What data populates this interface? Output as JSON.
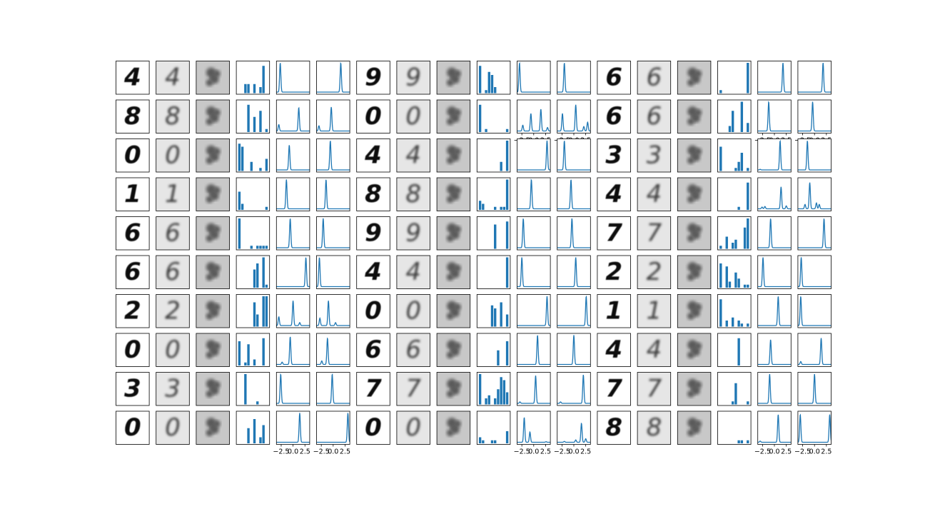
{
  "chart_data": {
    "type": "image-grid",
    "rows": 10,
    "groups": 3,
    "panels_per_group": [
      "input-digit",
      "reconstruction",
      "mean-image",
      "bar-histogram",
      "line-density",
      "line-density"
    ],
    "line_xticks": [
      "−2.5",
      "0.0",
      "2.5"
    ],
    "line_xlim": [
      -3.5,
      3.5
    ],
    "bar_color": "#1f77b4",
    "line_color": "#1f77b4",
    "digits": [
      [
        "4",
        "9",
        "6"
      ],
      [
        "8",
        "0",
        "6"
      ],
      [
        "0",
        "4",
        "3"
      ],
      [
        "1",
        "8",
        "4"
      ],
      [
        "6",
        "9",
        "7"
      ],
      [
        "6",
        "4",
        "2"
      ],
      [
        "2",
        "0",
        "1"
      ],
      [
        "0",
        "6",
        "4"
      ],
      [
        "3",
        "7",
        "7"
      ],
      [
        "0",
        "0",
        "8"
      ]
    ],
    "bars": [
      [
        [
          0,
          0,
          3,
          3,
          0,
          3,
          0,
          2,
          9,
          0
        ],
        [
          9,
          0,
          1,
          7,
          6,
          2,
          0,
          0,
          0,
          0
        ],
        [
          1,
          0,
          0,
          0,
          0,
          0,
          0,
          0,
          0,
          10
        ]
      ],
      [
        [
          0,
          0,
          0,
          9,
          0,
          5,
          0,
          7,
          0,
          1
        ],
        [
          9,
          0,
          1,
          0,
          0,
          0,
          0,
          0,
          0,
          1
        ],
        [
          0,
          0,
          0,
          2,
          7,
          0,
          0,
          10,
          0,
          3
        ]
      ],
      [
        [
          9,
          8,
          0,
          0,
          3,
          0,
          0,
          1,
          0,
          4
        ],
        [
          0,
          0,
          0,
          0,
          0,
          0,
          0,
          3,
          0,
          10
        ],
        [
          8,
          0,
          0,
          0,
          0,
          1,
          3,
          6,
          0,
          1
        ]
      ],
      [
        [
          6,
          2,
          0,
          0,
          0,
          0,
          0,
          0,
          0,
          1
        ],
        [
          3,
          2,
          0,
          0,
          0,
          1,
          0,
          1,
          1,
          10
        ],
        [
          0,
          0,
          0,
          0,
          0,
          0,
          1,
          0,
          0,
          9
        ]
      ],
      [
        [
          10,
          0,
          0,
          0,
          1,
          0,
          1,
          1,
          1,
          1
        ],
        [
          0,
          0,
          0,
          0,
          0,
          8,
          0,
          0,
          0,
          9
        ],
        [
          1,
          0,
          4,
          0,
          2,
          3,
          0,
          0,
          7,
          10
        ]
      ],
      [
        [
          0,
          0,
          0,
          0,
          0,
          6,
          8,
          0,
          10,
          1
        ],
        [
          0,
          0,
          0,
          0,
          0,
          0,
          0,
          0,
          0,
          10
        ],
        [
          8,
          0,
          7,
          2,
          0,
          5,
          3,
          0,
          1,
          1
        ]
      ],
      [
        [
          0,
          0,
          0,
          0,
          0,
          8,
          4,
          0,
          10,
          10
        ],
        [
          0,
          0,
          0,
          0,
          7,
          6,
          0,
          8,
          0,
          4
        ],
        [
          9,
          0,
          2,
          0,
          3,
          0,
          2,
          1,
          0,
          1
        ]
      ],
      [
        [
          8,
          0,
          1,
          7,
          0,
          2,
          0,
          0,
          9,
          0
        ],
        [
          0,
          0,
          0,
          0,
          0,
          0,
          5,
          0,
          0,
          8
        ],
        [
          0,
          0,
          0,
          0,
          0,
          0,
          9,
          0,
          0,
          0
        ]
      ],
      [
        [
          0,
          0,
          10,
          0,
          0,
          0,
          1,
          0,
          0,
          0
        ],
        [
          10,
          0,
          2,
          3,
          0,
          2,
          5,
          9,
          8,
          4
        ],
        [
          0,
          0,
          0,
          0,
          1,
          7,
          0,
          0,
          0,
          1
        ]
      ],
      [
        [
          0,
          0,
          0,
          5,
          0,
          8,
          0,
          2,
          6,
          0
        ],
        [
          2,
          1,
          0,
          0,
          1,
          1,
          0,
          0,
          0,
          4
        ],
        [
          0,
          0,
          0,
          0,
          0,
          0,
          1,
          1,
          0,
          1
        ]
      ]
    ],
    "peaks": [
      [
        [
          [
            -2.7,
            1.0
          ]
        ],
        [
          [
            1.6,
            1.0
          ]
        ]
      ],
      [
        [
          [
            -3.0,
            1.0
          ]
        ],
        [
          [
            -2.0,
            1.0
          ]
        ]
      ],
      [
        [
          [
            1.8,
            1.0
          ]
        ],
        [
          [
            1.8,
            1.0
          ]
        ]
      ],
      [
        [
          [
            -3.0,
            0.22
          ],
          [
            1.2,
            0.8
          ]
        ],
        [
          [
            -3.0,
            0.18
          ],
          [
            -0.4,
            0.82
          ]
        ]
      ],
      [
        [
          [
            -2.3,
            0.2
          ],
          [
            -0.6,
            0.6
          ],
          [
            1.5,
            0.75
          ],
          [
            2.9,
            0.12
          ]
        ],
        [
          [
            -2.4,
            0.6
          ],
          [
            0.4,
            0.9
          ],
          [
            2.1,
            0.15
          ],
          [
            2.9,
            0.3
          ]
        ]
      ],
      [
        [
          [
            -1.2,
            1.0
          ]
        ],
        [
          [
            -0.4,
            1.0
          ]
        ]
      ],
      [
        [
          [
            -0.8,
            0.85
          ]
        ],
        [
          [
            -0.6,
            1.0
          ]
        ]
      ],
      [
        [
          [
            2.8,
            1.0
          ]
        ],
        [
          [
            -2.0,
            1.0
          ]
        ]
      ],
      [
        [
          [
            1.2,
            1.0
          ],
          [
            -3.0,
            0.02
          ]
        ],
        [
          [
            -1.5,
            1.0
          ]
        ]
      ],
      [
        [
          [
            -1.4,
            1.0
          ]
        ],
        [
          [
            -1.5,
            1.0
          ]
        ]
      ],
      [
        [
          [
            -0.5,
            1.0
          ]
        ],
        [
          [
            -0.6,
            1.0
          ]
        ]
      ],
      [
        [
          [
            -2.6,
            0.06
          ],
          [
            -2.0,
            0.08
          ],
          [
            1.4,
            0.75
          ],
          [
            2.5,
            0.1
          ]
        ],
        [
          [
            -2.0,
            0.15
          ],
          [
            -1.0,
            0.9
          ],
          [
            0.4,
            0.2
          ],
          [
            1.0,
            0.15
          ]
        ]
      ],
      [
        [
          [
            -0.6,
            1.0
          ]
        ],
        [
          [
            -2.1,
            1.0
          ]
        ]
      ],
      [
        [
          [
            -2.2,
            1.0
          ]
        ],
        [
          [
            -0.4,
            1.0
          ]
        ]
      ],
      [
        [
          [
            -0.8,
            1.0
          ]
        ],
        [
          [
            2.0,
            1.0
          ]
        ]
      ],
      [
        [
          [
            2.7,
            1.0
          ]
        ],
        [
          [
            -2.9,
            1.0
          ]
        ]
      ],
      [
        [
          [
            -2.5,
            1.0
          ]
        ],
        [
          [
            0.4,
            1.0
          ]
        ]
      ],
      [
        [
          [
            -2.4,
            1.0
          ]
        ],
        [
          [
            -2.8,
            1.0
          ]
        ]
      ],
      [
        [
          [
            -3.0,
            0.3
          ],
          [
            0.0,
            0.85
          ],
          [
            1.4,
            0.1
          ]
        ],
        [
          [
            -2.8,
            0.25
          ],
          [
            -1.0,
            0.85
          ],
          [
            0.5,
            0.1
          ]
        ]
      ],
      [
        [
          [
            2.8,
            1.0
          ]
        ],
        [
          [
            2.6,
            1.0
          ]
        ]
      ],
      [
        [
          [
            0.8,
            1.0
          ]
        ],
        [
          [
            -2.9,
            1.0
          ]
        ]
      ],
      [
        [
          [
            -2.3,
            0.08
          ],
          [
            -0.6,
            0.95
          ]
        ],
        [
          [
            -2.4,
            0.12
          ],
          [
            -1.2,
            0.9
          ]
        ]
      ],
      [
        [
          [
            0.8,
            1.0
          ]
        ],
        [
          [
            0.0,
            1.0
          ]
        ]
      ],
      [
        [
          [
            -0.8,
            0.85
          ]
        ],
        [
          [
            -2.9,
            0.1
          ],
          [
            1.4,
            0.9
          ]
        ]
      ],
      [
        [
          [
            -2.6,
            1.0
          ]
        ],
        [
          [
            -0.2,
            1.0
          ]
        ]
      ],
      [
        [
          [
            -2.9,
            0.05
          ],
          [
            0.4,
            0.95
          ]
        ],
        [
          [
            -2.8,
            0.05
          ],
          [
            2.0,
            0.98
          ]
        ]
      ],
      [
        [
          [
            -1.0,
            1.0
          ]
        ],
        [
          [
            0.0,
            1.0
          ]
        ]
      ],
      [
        [
          [
            1.4,
            1.0
          ]
        ],
        [
          [
            3.1,
            1.0
          ]
        ]
      ],
      [
        [
          [
            -2.0,
            0.85
          ],
          [
            -0.8,
            0.35
          ],
          [
            2.6,
            0.02
          ]
        ],
        [
          [
            -2.0,
            0.03
          ],
          [
            0.4,
            0.08
          ],
          [
            1.6,
            0.65
          ],
          [
            2.5,
            0.12
          ]
        ]
      ],
      [
        [
          [
            0.8,
            0.95
          ],
          [
            -3.0,
            0.04
          ]
        ],
        [
          [
            -3.0,
            0.95
          ],
          [
            3.2,
            0.95
          ]
        ]
      ]
    ]
  }
}
